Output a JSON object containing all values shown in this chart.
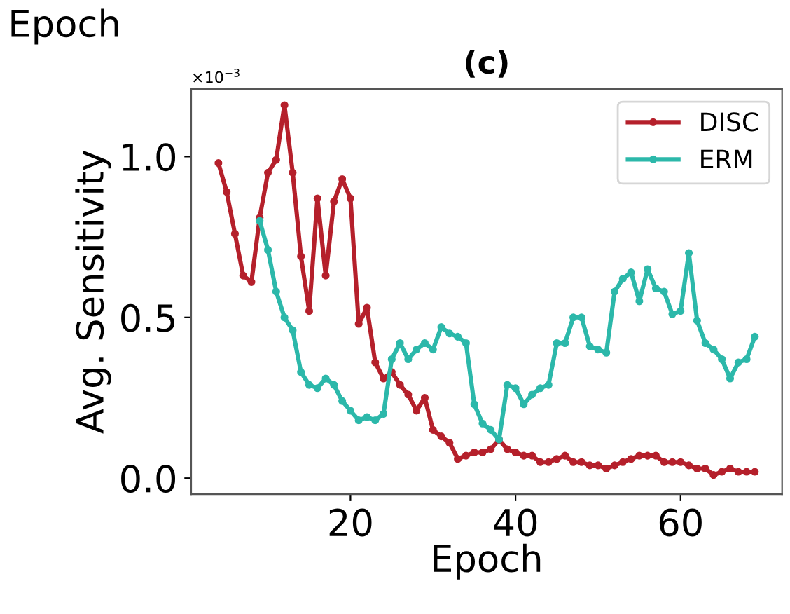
{
  "chart_data": {
    "type": "line",
    "title": "(c)",
    "xlabel": "Epoch",
    "ylabel": "Avg. Sensitivity",
    "annotations": [
      "×10$^{−3}$",
      "Epoch"
    ],
    "xlim": [
      0.7,
      72.3
    ],
    "xticks": [
      20,
      40,
      60
    ],
    "ylim": [
      -0.05,
      1.21
    ],
    "yticks": [
      {
        "value": 0,
        "label": "0.0"
      },
      0.5,
      {
        "value": 1,
        "label": "1.0"
      }
    ],
    "grid": false,
    "legend": "top right",
    "marker": "circle",
    "line_style": "solid",
    "series": [
      {
        "name": "DISC",
        "color": "#b5202b",
        "x": [
          4,
          5,
          6,
          7,
          8,
          9,
          10,
          11,
          12,
          13,
          14,
          15,
          16,
          17,
          18,
          19,
          20,
          21,
          22,
          23,
          24,
          25,
          26,
          27,
          28,
          29,
          30,
          31,
          32,
          33,
          34,
          35,
          36,
          37,
          38,
          39,
          40,
          41,
          42,
          43,
          44,
          45,
          46,
          47,
          48,
          49,
          50,
          51,
          52,
          53,
          54,
          55,
          56,
          57,
          58,
          59,
          60,
          61,
          62,
          63,
          64,
          65,
          66,
          67,
          68,
          69
        ],
        "values": [
          0.98,
          0.89,
          0.76,
          0.63,
          0.61,
          0.81,
          0.95,
          0.99,
          1.16,
          0.95,
          0.69,
          0.52,
          0.87,
          0.63,
          0.86,
          0.93,
          0.87,
          0.48,
          0.53,
          0.36,
          0.31,
          0.33,
          0.29,
          0.26,
          0.21,
          0.25,
          0.15,
          0.13,
          0.11,
          0.06,
          0.07,
          0.08,
          0.08,
          0.09,
          0.12,
          0.09,
          0.08,
          0.07,
          0.07,
          0.05,
          0.05,
          0.06,
          0.07,
          0.05,
          0.05,
          0.04,
          0.04,
          0.03,
          0.04,
          0.05,
          0.06,
          0.07,
          0.07,
          0.07,
          0.05,
          0.05,
          0.05,
          0.04,
          0.03,
          0.03,
          0.01,
          0.02,
          0.03,
          0.02,
          0.02,
          0.02
        ]
      },
      {
        "name": "ERM",
        "color": "#2cb8aa",
        "x": [
          9,
          10,
          11,
          12,
          13,
          14,
          15,
          16,
          17,
          18,
          19,
          20,
          21,
          22,
          23,
          24,
          25,
          26,
          27,
          28,
          29,
          30,
          31,
          32,
          33,
          34,
          35,
          36,
          37,
          38,
          39,
          40,
          41,
          42,
          43,
          44,
          45,
          46,
          47,
          48,
          49,
          50,
          51,
          52,
          53,
          54,
          55,
          56,
          57,
          58,
          59,
          60,
          61,
          62,
          63,
          64,
          65,
          66,
          67,
          68,
          69
        ],
        "values": [
          0.8,
          0.71,
          0.58,
          0.5,
          0.46,
          0.33,
          0.29,
          0.28,
          0.31,
          0.29,
          0.24,
          0.21,
          0.18,
          0.19,
          0.18,
          0.2,
          0.37,
          0.42,
          0.37,
          0.4,
          0.42,
          0.4,
          0.47,
          0.45,
          0.44,
          0.42,
          0.23,
          0.17,
          0.15,
          0.12,
          0.29,
          0.28,
          0.23,
          0.26,
          0.28,
          0.29,
          0.42,
          0.42,
          0.5,
          0.5,
          0.41,
          0.4,
          0.39,
          0.58,
          0.62,
          0.64,
          0.55,
          0.65,
          0.59,
          0.58,
          0.51,
          0.52,
          0.7,
          0.49,
          0.42,
          0.4,
          0.37,
          0.31,
          0.36,
          0.37,
          0.44
        ]
      }
    ]
  }
}
